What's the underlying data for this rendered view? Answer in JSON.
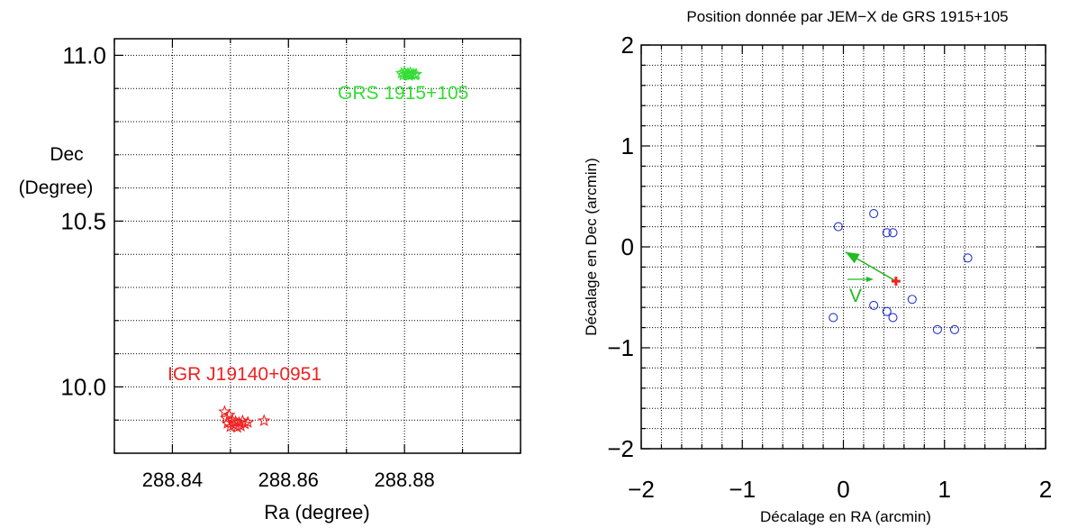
{
  "chart_data": [
    {
      "type": "scatter",
      "title": "",
      "xlabel": "Ra (degree)",
      "ylabel": [
        "Dec",
        "(Degree)"
      ],
      "xlim": [
        288.83,
        288.9
      ],
      "ylim": [
        9.8,
        11.05
      ],
      "xticks": [
        288.84,
        288.86,
        288.88
      ],
      "xtick_labels": [
        "288.84",
        "288.86",
        "288.88"
      ],
      "yticks": [
        10.0,
        10.5,
        11.0
      ],
      "ytick_labels": [
        "10.0",
        "10.5",
        "11.0"
      ],
      "grid": true,
      "series": [
        {
          "name": "GRS 1915+105",
          "marker": "star",
          "color": "#33dd33",
          "points": [
            [
              288.8795,
              10.946
            ],
            [
              288.8798,
              10.94
            ],
            [
              288.88,
              10.948
            ],
            [
              288.8803,
              10.942
            ],
            [
              288.8806,
              10.945
            ],
            [
              288.8808,
              10.939
            ],
            [
              288.881,
              10.947
            ],
            [
              288.8812,
              10.941
            ],
            [
              288.8815,
              10.944
            ],
            [
              288.8818,
              10.94
            ],
            [
              288.882,
              10.943
            ]
          ]
        },
        {
          "name": "IGR J19140+0951",
          "marker": "star",
          "color": "#ee2222",
          "points": [
            [
              288.849,
              9.925
            ],
            [
              288.8493,
              9.905
            ],
            [
              288.8495,
              9.89
            ],
            [
              288.8498,
              9.915
            ],
            [
              288.85,
              9.88
            ],
            [
              288.8503,
              9.9
            ],
            [
              288.8506,
              9.885
            ],
            [
              288.8509,
              9.895
            ],
            [
              288.8512,
              9.878
            ],
            [
              288.8515,
              9.892
            ],
            [
              288.8518,
              9.882
            ],
            [
              288.8521,
              9.897
            ],
            [
              288.8525,
              9.888
            ],
            [
              288.853,
              9.893
            ],
            [
              288.8558,
              9.898
            ]
          ]
        }
      ]
    },
    {
      "type": "scatter",
      "title": "Position donnée par JEM−X de GRS 1915+105",
      "xlabel": "Décalage en RA (arcmin)",
      "ylabel": "Décalage en Dec (arcmin)",
      "xlim": [
        -2,
        2
      ],
      "ylim": [
        -2,
        2
      ],
      "xticks": [
        -2,
        -1,
        0,
        1,
        2
      ],
      "xtick_labels": [
        "−2",
        "−1",
        "0",
        "1",
        "2"
      ],
      "yticks": [
        -2,
        -1,
        0,
        1,
        2
      ],
      "ytick_labels": [
        "−2",
        "−1",
        "0",
        "1",
        "2"
      ],
      "grid": true,
      "series": [
        {
          "name": "",
          "marker": "circle",
          "color": "#2233cc",
          "points": [
            [
              -0.05,
              0.2
            ],
            [
              0.3,
              0.33
            ],
            [
              0.43,
              0.14
            ],
            [
              0.49,
              0.14
            ],
            [
              1.23,
              -0.11
            ],
            [
              0.68,
              -0.52
            ],
            [
              0.3,
              -0.58
            ],
            [
              0.43,
              -0.64
            ],
            [
              0.49,
              -0.7
            ],
            [
              -0.1,
              -0.7
            ],
            [
              0.93,
              -0.82
            ],
            [
              1.1,
              -0.82
            ]
          ]
        },
        {
          "name": "",
          "marker": "plus",
          "color": "#ee2222",
          "points": [
            [
              0.52,
              -0.34
            ]
          ]
        }
      ],
      "annotations": {
        "arrow": {
          "from": [
            0.52,
            -0.34
          ],
          "to": [
            0.02,
            -0.05
          ],
          "color": "#22bb22"
        },
        "velocity_label": "V",
        "velocity_arrow_color": "#22bb22"
      }
    }
  ]
}
